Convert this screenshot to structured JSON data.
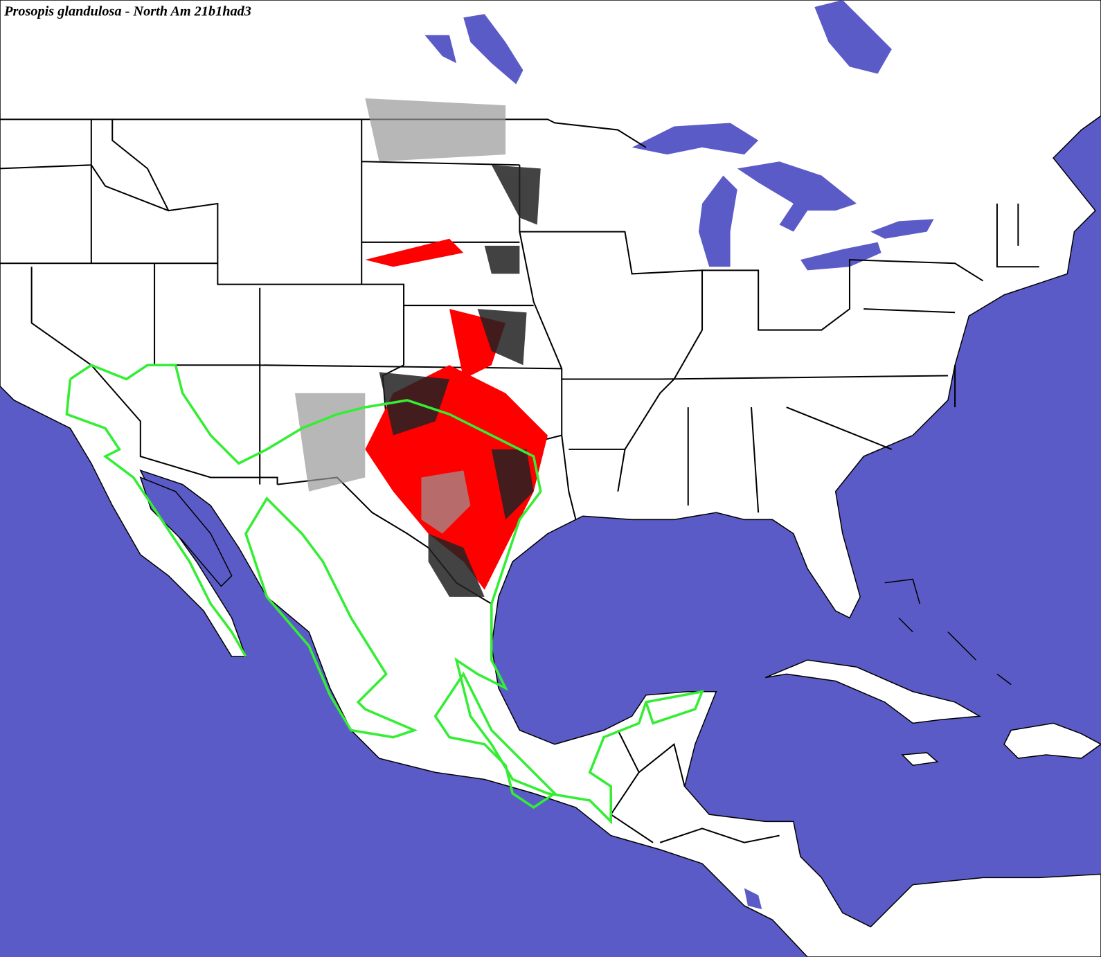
{
  "title": "Prosopis glandulosa - North Am 21b1had3"
}
